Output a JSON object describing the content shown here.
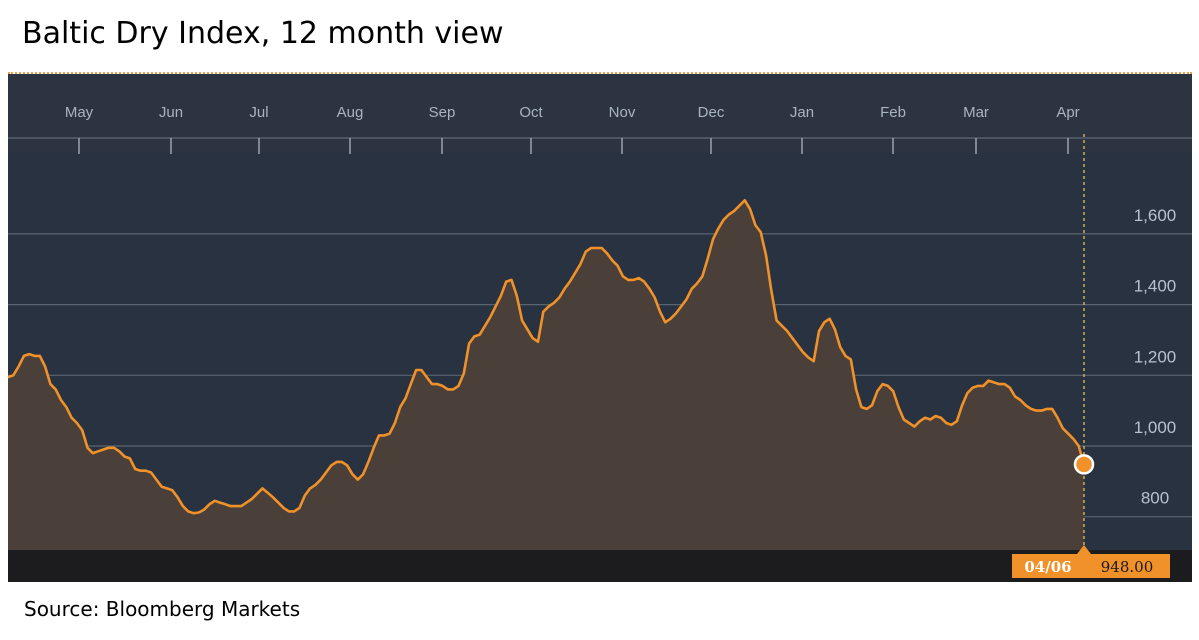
{
  "title": "Baltic Dry Index, 12 month view",
  "source": "Source: Bloomberg Markets",
  "colors": {
    "header_bg": "#2b3440",
    "plot_bg": "#283240",
    "footer_bg": "#1c1c1e",
    "line": "#f0912a",
    "area": "#4b4039",
    "grid": "#5a6470",
    "highlight": "#f0912a"
  },
  "chart_data": {
    "type": "area",
    "title": "Baltic Dry Index, 12 month view",
    "xlabel": "",
    "ylabel": "",
    "ylim": [
      750,
      1850
    ],
    "y_ticks": [
      "800",
      "1,000",
      "1,200",
      "1,400",
      "1,600"
    ],
    "y_tick_values": [
      800,
      1000,
      1200,
      1400,
      1600
    ],
    "months": [
      "May",
      "Jun",
      "Jul",
      "Aug",
      "Sep",
      "Oct",
      "Nov",
      "Dec",
      "Jan",
      "Feb",
      "Mar",
      "Apr"
    ],
    "grid": true,
    "x_index_range": [
      0,
      292
    ],
    "values": [
      1195,
      1200,
      1225,
      1255,
      1260,
      1255,
      1255,
      1225,
      1175,
      1160,
      1130,
      1110,
      1080,
      1065,
      1045,
      995,
      980,
      985,
      990,
      995,
      995,
      985,
      970,
      965,
      935,
      930,
      930,
      925,
      905,
      885,
      880,
      875,
      855,
      830,
      815,
      810,
      812,
      820,
      835,
      845,
      840,
      835,
      830,
      830,
      830,
      840,
      850,
      865,
      880,
      868,
      855,
      840,
      825,
      815,
      815,
      825,
      860,
      880,
      890,
      905,
      925,
      945,
      955,
      955,
      945,
      920,
      905,
      920,
      955,
      995,
      1030,
      1030,
      1035,
      1065,
      1110,
      1135,
      1175,
      1215,
      1215,
      1195,
      1175,
      1175,
      1170,
      1160,
      1160,
      1170,
      1205,
      1290,
      1310,
      1315,
      1340,
      1365,
      1395,
      1425,
      1465,
      1470,
      1425,
      1355,
      1330,
      1305,
      1295,
      1380,
      1395,
      1405,
      1420,
      1445,
      1465,
      1490,
      1515,
      1550,
      1560,
      1560,
      1560,
      1545,
      1525,
      1510,
      1480,
      1470,
      1470,
      1475,
      1465,
      1445,
      1420,
      1380,
      1350,
      1360,
      1375,
      1395,
      1415,
      1445,
      1460,
      1480,
      1530,
      1585,
      1615,
      1640,
      1655,
      1665,
      1680,
      1695,
      1670,
      1625,
      1605,
      1540,
      1440,
      1355,
      1340,
      1325,
      1305,
      1285,
      1265,
      1250,
      1240,
      1325,
      1350,
      1360,
      1330,
      1280,
      1255,
      1245,
      1160,
      1110,
      1105,
      1115,
      1155,
      1175,
      1170,
      1155,
      1110,
      1075,
      1065,
      1055,
      1070,
      1080,
      1075,
      1085,
      1080,
      1065,
      1060,
      1070,
      1115,
      1150,
      1165,
      1170,
      1170,
      1185,
      1180,
      1175,
      1175,
      1165,
      1140,
      1130,
      1115,
      1105,
      1100,
      1100,
      1105,
      1105,
      1080,
      1050,
      1035,
      1020,
      1000,
      948
    ],
    "last_point": {
      "date": "04/06",
      "value_label": "948.00",
      "value": 948
    }
  }
}
